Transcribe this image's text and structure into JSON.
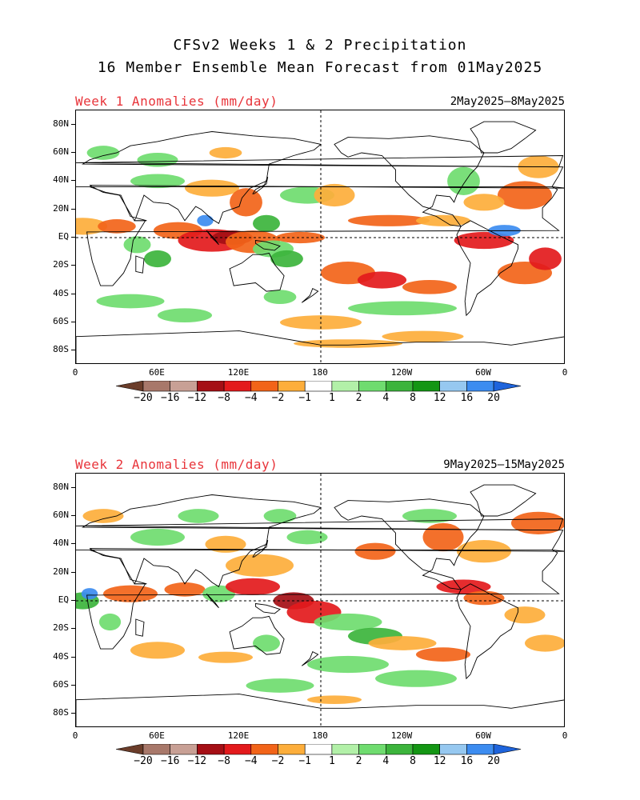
{
  "header": {
    "title_line1": "CFSv2 Weeks 1 & 2 Precipitation",
    "title_line2": "16 Member Ensemble Mean Forecast from 01May2025"
  },
  "panels": [
    {
      "label": "Week 1 Anomalies (mm/day)",
      "dates": "2May2025–8May2025"
    },
    {
      "label": "Week 2 Anomalies (mm/day)",
      "dates": "9May2025–15May2025"
    }
  ],
  "axes": {
    "lat_labels": [
      "80N",
      "60N",
      "40N",
      "20N",
      "EQ",
      "20S",
      "40S",
      "60S",
      "80S"
    ],
    "lat_values": [
      80,
      60,
      40,
      20,
      0,
      -20,
      -40,
      -60,
      -80
    ],
    "lon_labels": [
      "0",
      "60E",
      "120E",
      "180",
      "120W",
      "60W",
      "0"
    ],
    "lon_values": [
      0,
      60,
      120,
      180,
      240,
      300,
      360
    ]
  },
  "colorbar": {
    "labels": [
      "−20",
      "−16",
      "−12",
      "−8",
      "−4",
      "−2",
      "−1",
      "1",
      "2",
      "4",
      "8",
      "12",
      "16",
      "20"
    ],
    "colors": [
      "#6b3d2a",
      "#a8786a",
      "#c8a095",
      "#a50f15",
      "#e31a1c",
      "#f26419",
      "#fdae3b",
      "#ffffff",
      "#b2f0a8",
      "#6fdc6f",
      "#3cb43c",
      "#149614",
      "#96c8f0",
      "#3c8cf0",
      "#1e64dc"
    ]
  },
  "colors": {
    "title_red": "#e8343a"
  }
}
